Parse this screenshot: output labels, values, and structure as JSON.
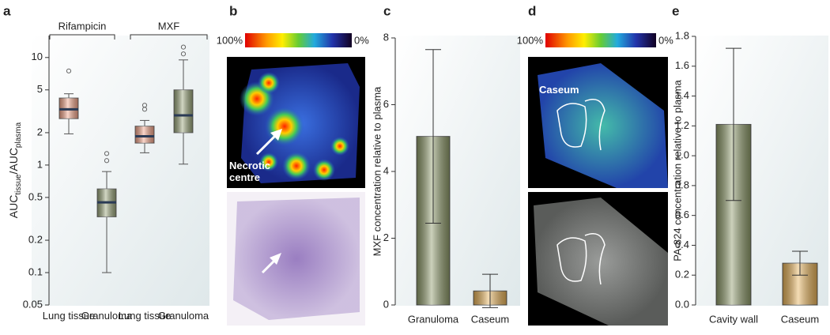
{
  "panel_labels": [
    "a",
    "b",
    "c",
    "d",
    "e"
  ],
  "images": {
    "b": {
      "annotation": "Necrotic centre",
      "scale": {
        "max_label": "100%",
        "min_label": "0%"
      }
    },
    "d": {
      "annotation": "Caseum",
      "scale": {
        "max_label": "100%",
        "min_label": "0%"
      }
    }
  },
  "chart_data": [
    {
      "type": "box",
      "log_y": true,
      "y_label": [
        "AUC",
        "tissue",
        "/AUC",
        "plasma"
      ],
      "group_labels": [
        "Rifampicin",
        "MXF"
      ],
      "categories": [
        "Lung tissue",
        "Granuloma",
        "Lung tissue",
        "Granuloma"
      ],
      "boxes": [
        {
          "whislo": 1.95,
          "q1": 2.7,
          "med": 3.3,
          "q3": 4.2,
          "whishi": 4.6,
          "fliers": [
            7.5
          ],
          "color": "#f4a58a"
        },
        {
          "whislo": 0.1,
          "q1": 0.33,
          "med": 0.45,
          "q3": 0.6,
          "whishi": 0.87,
          "fliers": [
            1.1,
            1.28
          ],
          "color": "#9aa57a"
        },
        {
          "whislo": 1.3,
          "q1": 1.6,
          "med": 1.85,
          "q3": 2.3,
          "whishi": 2.6,
          "fliers": [
            3.3,
            3.6
          ],
          "color": "#f4a58a"
        },
        {
          "whislo": 1.02,
          "q1": 2.0,
          "med": 2.9,
          "q3": 5.0,
          "whishi": 9.5,
          "fliers": [
            10.8,
            12.5
          ],
          "color": "#9aa57a"
        }
      ],
      "ylim": [
        0.05,
        16
      ],
      "yticks": [
        0.05,
        0.1,
        0.2,
        0.5,
        1,
        2,
        5,
        10
      ]
    },
    {
      "type": "bar",
      "y_label": "MXF concentration relative to plasma",
      "categories": [
        "Granuloma",
        "Caseum"
      ],
      "values": [
        5.05,
        0.42
      ],
      "errors": [
        2.6,
        0.5
      ],
      "colors": [
        "#8e9a6a",
        "#e8b35a"
      ],
      "ylim": [
        0,
        8
      ],
      "yticks": [
        0,
        2,
        4,
        6,
        8
      ]
    },
    {
      "type": "bar",
      "y_label": "PA-824 concentration relative to plasma",
      "categories": [
        "Cavity wall",
        "Caseum"
      ],
      "values": [
        1.21,
        0.28
      ],
      "errors": [
        0.51,
        0.08
      ],
      "colors": [
        "#8e9a6a",
        "#e8b35a"
      ],
      "ylim": [
        0,
        1.8
      ],
      "yticks": [
        {
          "value": 0,
          "label": "0.0"
        },
        0.2,
        0.4,
        0.6,
        0.8,
        {
          "value": 1,
          "label": "1.0"
        },
        1.2,
        1.4,
        1.6,
        1.8
      ]
    }
  ]
}
